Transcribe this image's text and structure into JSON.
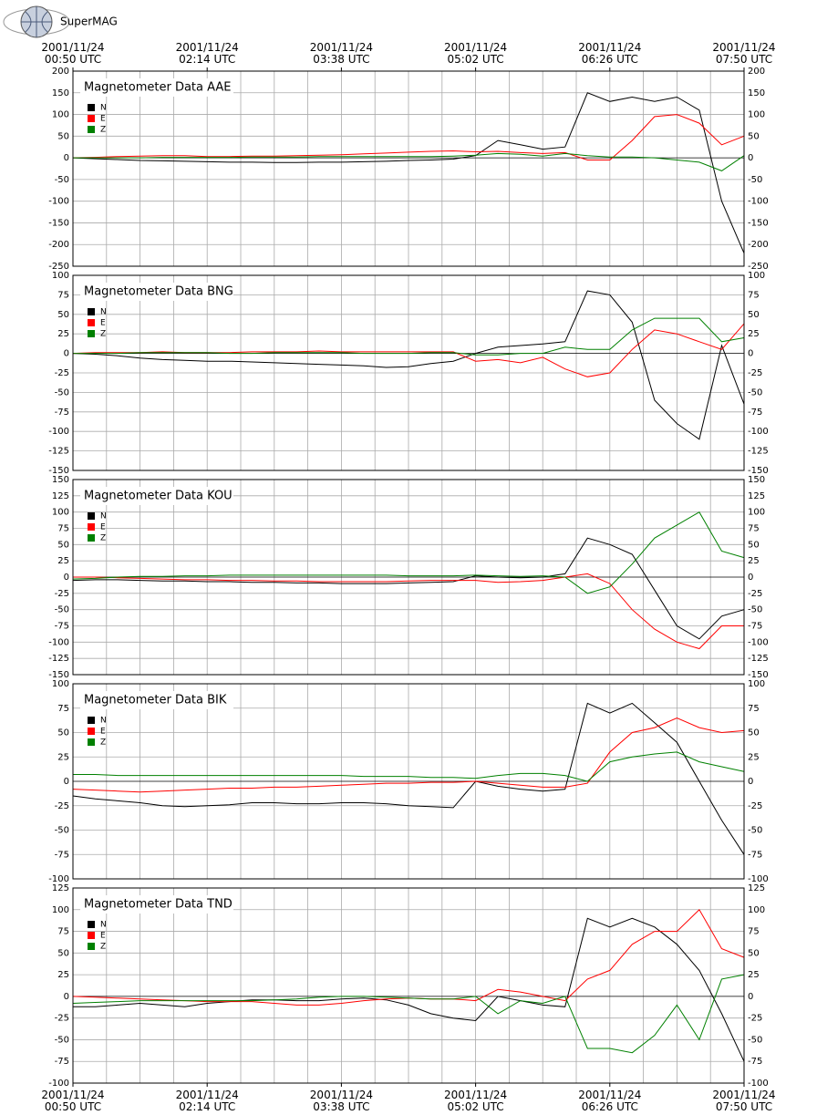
{
  "brand": "SuperMAG",
  "chart_data": [
    {
      "type": "line",
      "title": "Magnetometer Data AAE",
      "x": [
        "2001/11/24 00:50",
        "2001/11/24 01:04",
        "2001/11/24 01:18",
        "2001/11/24 01:32",
        "2001/11/24 01:46",
        "2001/11/24 02:00",
        "2001/11/24 02:14",
        "2001/11/24 02:28",
        "2001/11/24 02:42",
        "2001/11/24 02:56",
        "2001/11/24 03:10",
        "2001/11/24 03:24",
        "2001/11/24 03:38",
        "2001/11/24 03:52",
        "2001/11/24 04:06",
        "2001/11/24 04:20",
        "2001/11/24 04:34",
        "2001/11/24 04:48",
        "2001/11/24 05:02",
        "2001/11/24 05:16",
        "2001/11/24 05:30",
        "2001/11/24 05:44",
        "2001/11/24 05:58",
        "2001/11/24 06:12",
        "2001/11/24 06:26",
        "2001/11/24 06:40",
        "2001/11/24 06:54",
        "2001/11/24 07:08",
        "2001/11/24 07:22",
        "2001/11/24 07:36",
        "2001/11/24 07:50"
      ],
      "xticks": [
        {
          "value": "2001/11/24 00:50",
          "label": "2001/11/24\n00:50 UTC"
        },
        {
          "value": "2001/11/24 02:14",
          "label": "2001/11/24\n02:14 UTC"
        },
        {
          "value": "2001/11/24 03:38",
          "label": "2001/11/24\n03:38 UTC"
        },
        {
          "value": "2001/11/24 05:02",
          "label": "2001/11/24\n05:02 UTC"
        },
        {
          "value": "2001/11/24 06:26",
          "label": "2001/11/24\n06:26 UTC"
        },
        {
          "value": "2001/11/24 07:50",
          "label": "2001/11/24\n07:50 UTC"
        }
      ],
      "series": [
        {
          "name": "N",
          "color": "#000000",
          "values": [
            0,
            -2,
            -4,
            -6,
            -7,
            -8,
            -9,
            -10,
            -10,
            -11,
            -11,
            -10,
            -10,
            -9,
            -8,
            -6,
            -5,
            -3,
            5,
            40,
            30,
            20,
            25,
            150,
            130,
            140,
            130,
            140,
            110,
            -100,
            -220
          ]
        },
        {
          "name": "E",
          "color": "#ff0000",
          "values": [
            0,
            1,
            3,
            4,
            5,
            5,
            3,
            3,
            4,
            4,
            5,
            6,
            7,
            9,
            11,
            13,
            15,
            16,
            14,
            15,
            12,
            10,
            12,
            -5,
            -5,
            40,
            95,
            100,
            80,
            30,
            50
          ]
        },
        {
          "name": "Z",
          "color": "#008000",
          "values": [
            0,
            0,
            0,
            0,
            1,
            1,
            1,
            1,
            2,
            2,
            2,
            3,
            3,
            3,
            3,
            3,
            3,
            4,
            6,
            10,
            8,
            4,
            10,
            5,
            2,
            2,
            0,
            -5,
            -10,
            -30,
            5
          ]
        }
      ],
      "ylim": [
        -250,
        200
      ],
      "yticks": [
        200,
        150,
        100,
        50,
        0,
        -50,
        -100,
        -150,
        -200,
        -250
      ],
      "grid": true
    },
    {
      "type": "line",
      "title": "Magnetometer Data BNG",
      "x": [
        "2001/11/24 00:50",
        "2001/11/24 01:04",
        "2001/11/24 01:18",
        "2001/11/24 01:32",
        "2001/11/24 01:46",
        "2001/11/24 02:00",
        "2001/11/24 02:14",
        "2001/11/24 02:28",
        "2001/11/24 02:42",
        "2001/11/24 02:56",
        "2001/11/24 03:10",
        "2001/11/24 03:24",
        "2001/11/24 03:38",
        "2001/11/24 03:52",
        "2001/11/24 04:06",
        "2001/11/24 04:20",
        "2001/11/24 04:34",
        "2001/11/24 04:48",
        "2001/11/24 05:02",
        "2001/11/24 05:16",
        "2001/11/24 05:30",
        "2001/11/24 05:44",
        "2001/11/24 05:58",
        "2001/11/24 06:12",
        "2001/11/24 06:26",
        "2001/11/24 06:40",
        "2001/11/24 06:54",
        "2001/11/24 07:08",
        "2001/11/24 07:22",
        "2001/11/24 07:36",
        "2001/11/24 07:50"
      ],
      "series": [
        {
          "name": "N",
          "color": "#000000",
          "values": [
            0,
            -1,
            -3,
            -6,
            -8,
            -9,
            -10,
            -10,
            -11,
            -12,
            -13,
            -14,
            -15,
            -16,
            -18,
            -17,
            -13,
            -10,
            0,
            8,
            10,
            12,
            15,
            80,
            75,
            40,
            -60,
            -90,
            -110,
            10,
            -65
          ]
        },
        {
          "name": "E",
          "color": "#ff0000",
          "values": [
            0,
            1,
            1,
            1,
            2,
            1,
            1,
            1,
            2,
            2,
            2,
            3,
            2,
            2,
            2,
            2,
            2,
            2,
            -10,
            -8,
            -12,
            -5,
            -20,
            -30,
            -25,
            5,
            30,
            25,
            15,
            5,
            38
          ]
        },
        {
          "name": "Z",
          "color": "#008000",
          "values": [
            0,
            0,
            0,
            1,
            1,
            1,
            1,
            0,
            0,
            1,
            1,
            1,
            1,
            0,
            0,
            0,
            1,
            1,
            -2,
            -2,
            0,
            0,
            8,
            5,
            5,
            30,
            45,
            45,
            45,
            15,
            20
          ]
        }
      ],
      "ylim": [
        -150,
        100
      ],
      "yticks": [
        100,
        75,
        50,
        25,
        0,
        -25,
        -50,
        -75,
        -100,
        -125,
        -150
      ],
      "grid": true
    },
    {
      "type": "line",
      "title": "Magnetometer Data KOU",
      "x": [
        "2001/11/24 00:50",
        "2001/11/24 01:04",
        "2001/11/24 01:18",
        "2001/11/24 01:32",
        "2001/11/24 01:46",
        "2001/11/24 02:00",
        "2001/11/24 02:14",
        "2001/11/24 02:28",
        "2001/11/24 02:42",
        "2001/11/24 02:56",
        "2001/11/24 03:10",
        "2001/11/24 03:24",
        "2001/11/24 03:38",
        "2001/11/24 03:52",
        "2001/11/24 04:06",
        "2001/11/24 04:20",
        "2001/11/24 04:34",
        "2001/11/24 04:48",
        "2001/11/24 05:02",
        "2001/11/24 05:16",
        "2001/11/24 05:30",
        "2001/11/24 05:44",
        "2001/11/24 05:58",
        "2001/11/24 06:12",
        "2001/11/24 06:26",
        "2001/11/24 06:40",
        "2001/11/24 06:54",
        "2001/11/24 07:08",
        "2001/11/24 07:22",
        "2001/11/24 07:36",
        "2001/11/24 07:50"
      ],
      "series": [
        {
          "name": "N",
          "color": "#000000",
          "values": [
            -5,
            -4,
            -4,
            -5,
            -6,
            -6,
            -7,
            -7,
            -8,
            -8,
            -9,
            -9,
            -10,
            -10,
            -10,
            -9,
            -8,
            -7,
            2,
            0,
            -1,
            0,
            5,
            60,
            50,
            35,
            -20,
            -75,
            -95,
            -60,
            -50
          ]
        },
        {
          "name": "E",
          "color": "#ff0000",
          "values": [
            0,
            0,
            -1,
            -2,
            -3,
            -4,
            -4,
            -5,
            -5,
            -6,
            -6,
            -7,
            -7,
            -7,
            -7,
            -6,
            -5,
            -5,
            -5,
            -8,
            -7,
            -5,
            0,
            5,
            -10,
            -50,
            -80,
            -100,
            -110,
            -75,
            -75
          ]
        },
        {
          "name": "Z",
          "color": "#008000",
          "values": [
            -3,
            -2,
            0,
            1,
            1,
            2,
            2,
            3,
            3,
            3,
            3,
            3,
            3,
            3,
            3,
            2,
            2,
            2,
            3,
            2,
            1,
            2,
            0,
            -25,
            -15,
            20,
            60,
            80,
            100,
            40,
            30
          ]
        }
      ],
      "ylim": [
        -150,
        150
      ],
      "yticks": [
        150,
        125,
        100,
        75,
        50,
        25,
        0,
        -25,
        -50,
        -75,
        -100,
        -125,
        -150
      ],
      "grid": true
    },
    {
      "type": "line",
      "title": "Magnetometer Data BIK",
      "x": [
        "2001/11/24 00:50",
        "2001/11/24 01:04",
        "2001/11/24 01:18",
        "2001/11/24 01:32",
        "2001/11/24 01:46",
        "2001/11/24 02:00",
        "2001/11/24 02:14",
        "2001/11/24 02:28",
        "2001/11/24 02:42",
        "2001/11/24 02:56",
        "2001/11/24 03:10",
        "2001/11/24 03:24",
        "2001/11/24 03:38",
        "2001/11/24 03:52",
        "2001/11/24 04:06",
        "2001/11/24 04:20",
        "2001/11/24 04:34",
        "2001/11/24 04:48",
        "2001/11/24 05:02",
        "2001/11/24 05:16",
        "2001/11/24 05:30",
        "2001/11/24 05:44",
        "2001/11/24 05:58",
        "2001/11/24 06:12",
        "2001/11/24 06:26",
        "2001/11/24 06:40",
        "2001/11/24 06:54",
        "2001/11/24 07:08",
        "2001/11/24 07:22",
        "2001/11/24 07:36",
        "2001/11/24 07:50"
      ],
      "series": [
        {
          "name": "N",
          "color": "#000000",
          "values": [
            -15,
            -18,
            -20,
            -22,
            -25,
            -26,
            -25,
            -24,
            -22,
            -22,
            -23,
            -23,
            -22,
            -22,
            -23,
            -25,
            -26,
            -27,
            0,
            -5,
            -8,
            -10,
            -8,
            80,
            70,
            80,
            60,
            40,
            0,
            -40,
            -75
          ]
        },
        {
          "name": "E",
          "color": "#ff0000",
          "values": [
            -8,
            -9,
            -10,
            -11,
            -10,
            -9,
            -8,
            -7,
            -7,
            -6,
            -6,
            -5,
            -4,
            -3,
            -2,
            -2,
            -1,
            -1,
            0,
            -2,
            -4,
            -6,
            -6,
            -2,
            30,
            50,
            55,
            65,
            55,
            50,
            52
          ]
        },
        {
          "name": "Z",
          "color": "#008000",
          "values": [
            7,
            7,
            6,
            6,
            6,
            6,
            6,
            6,
            6,
            6,
            6,
            6,
            6,
            5,
            5,
            5,
            4,
            4,
            3,
            6,
            8,
            8,
            6,
            0,
            20,
            25,
            28,
            30,
            20,
            15,
            10
          ]
        }
      ],
      "ylim": [
        -100,
        100
      ],
      "yticks": [
        100,
        75,
        50,
        25,
        0,
        -25,
        -50,
        -75,
        -100
      ],
      "grid": true
    },
    {
      "type": "line",
      "title": "Magnetometer Data TND",
      "x": [
        "2001/11/24 00:50",
        "2001/11/24 01:04",
        "2001/11/24 01:18",
        "2001/11/24 01:32",
        "2001/11/24 01:46",
        "2001/11/24 02:00",
        "2001/11/24 02:14",
        "2001/11/24 02:28",
        "2001/11/24 02:42",
        "2001/11/24 02:56",
        "2001/11/24 03:10",
        "2001/11/24 03:24",
        "2001/11/24 03:38",
        "2001/11/24 03:52",
        "2001/11/24 04:06",
        "2001/11/24 04:20",
        "2001/11/24 04:34",
        "2001/11/24 04:48",
        "2001/11/24 05:02",
        "2001/11/24 05:16",
        "2001/11/24 05:30",
        "2001/11/24 05:44",
        "2001/11/24 05:58",
        "2001/11/24 06:12",
        "2001/11/24 06:26",
        "2001/11/24 06:40",
        "2001/11/24 06:54",
        "2001/11/24 07:08",
        "2001/11/24 07:22",
        "2001/11/24 07:36",
        "2001/11/24 07:50"
      ],
      "xticks": [
        {
          "value": "2001/11/24 00:50",
          "label": "2001/11/24\n00:50 UTC"
        },
        {
          "value": "2001/11/24 02:14",
          "label": "2001/11/24\n02:14 UTC"
        },
        {
          "value": "2001/11/24 03:38",
          "label": "2001/11/24\n03:38 UTC"
        },
        {
          "value": "2001/11/24 05:02",
          "label": "2001/11/24\n05:02 UTC"
        },
        {
          "value": "2001/11/24 06:26",
          "label": "2001/11/24\n06:26 UTC"
        },
        {
          "value": "2001/11/24 07:50",
          "label": "2001/11/24\n07:50 UTC"
        }
      ],
      "series": [
        {
          "name": "N",
          "color": "#000000",
          "values": [
            -12,
            -12,
            -10,
            -8,
            -10,
            -12,
            -8,
            -6,
            -4,
            -4,
            -5,
            -5,
            -3,
            -2,
            -4,
            -10,
            -20,
            -25,
            -28,
            0,
            -5,
            -10,
            -12,
            90,
            80,
            90,
            80,
            60,
            30,
            -20,
            -75
          ]
        },
        {
          "name": "E",
          "color": "#ff0000",
          "values": [
            0,
            -1,
            -2,
            -3,
            -4,
            -5,
            -6,
            -6,
            -6,
            -8,
            -10,
            -10,
            -8,
            -5,
            -3,
            -2,
            -3,
            -3,
            -5,
            8,
            5,
            0,
            -5,
            20,
            30,
            60,
            75,
            75,
            100,
            55,
            45
          ]
        },
        {
          "name": "Z",
          "color": "#008000",
          "values": [
            -8,
            -7,
            -6,
            -5,
            -5,
            -5,
            -5,
            -5,
            -5,
            -4,
            -3,
            -1,
            0,
            0,
            -1,
            -2,
            -3,
            -3,
            0,
            -20,
            -5,
            -8,
            0,
            -60,
            -60,
            -65,
            -45,
            -10,
            -50,
            20,
            25
          ]
        }
      ],
      "ylim": [
        -100,
        125
      ],
      "yticks": [
        125,
        100,
        75,
        50,
        25,
        0,
        -25,
        -50,
        -75,
        -100
      ],
      "grid": true
    }
  ]
}
